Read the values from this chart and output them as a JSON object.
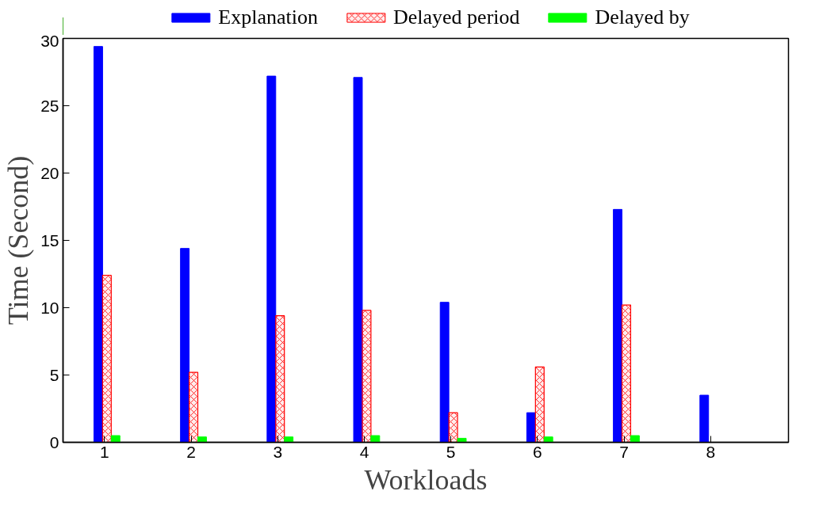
{
  "chart_data": {
    "type": "bar",
    "xlabel": "Workloads",
    "ylabel": "Time (Second)",
    "categories": [
      "1",
      "2",
      "3",
      "4",
      "5",
      "6",
      "7",
      "8"
    ],
    "series": [
      {
        "name": "Explanation",
        "color": "#0000ff",
        "values": [
          29.4,
          14.4,
          27.2,
          27.1,
          10.4,
          2.2,
          17.3,
          3.5
        ]
      },
      {
        "name": "Delayed period",
        "color": "#ff0000",
        "values": [
          12.4,
          5.2,
          9.4,
          9.8,
          2.2,
          5.6,
          10.2,
          0
        ]
      },
      {
        "name": "Delayed by",
        "color": "#00ff00",
        "values": [
          0.5,
          0.4,
          0.4,
          0.5,
          0.3,
          0.4,
          0.5,
          0
        ]
      }
    ],
    "ylim": [
      0,
      30
    ],
    "yticks": [
      0,
      5,
      10,
      15,
      20,
      25,
      30
    ],
    "grid": false,
    "legend": "top"
  }
}
